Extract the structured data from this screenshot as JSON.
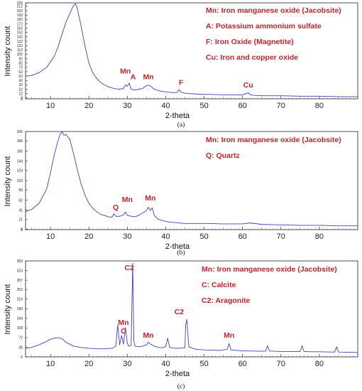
{
  "chart_data": [
    {
      "type": "line",
      "panel_label": "(a)",
      "xlabel": "2-theta",
      "ylabel": "Intensity count",
      "xlim": [
        3.5,
        90
      ],
      "ylim": [
        0,
        220
      ],
      "x_ticks": [
        10,
        20,
        30,
        40,
        50,
        60,
        70,
        80
      ],
      "y_ticks": [
        0,
        2,
        12,
        22,
        32,
        42,
        52,
        62,
        72,
        82,
        92,
        102,
        112,
        122,
        132,
        142,
        152,
        162,
        172,
        182,
        192,
        202,
        212,
        220
      ],
      "series": [
        {
          "color": "#3b43b8",
          "x": [
            3.5,
            5,
            7,
            9,
            11,
            12,
            13,
            14,
            15,
            15.5,
            16,
            16.5,
            17,
            18,
            19,
            20,
            21,
            22,
            23,
            24,
            25,
            26,
            27,
            28,
            29,
            29.5,
            30,
            30.5,
            31,
            32,
            33,
            34,
            35,
            35.5,
            36,
            37,
            38,
            39,
            40,
            41,
            42,
            43,
            43.5,
            44,
            45,
            46,
            48,
            50,
            52,
            55,
            58,
            60,
            61.5,
            62,
            63,
            65,
            70,
            75,
            80,
            85,
            90
          ],
          "y": [
            52,
            53,
            60,
            72,
            98,
            120,
            148,
            175,
            195,
            205,
            214,
            218,
            206,
            165,
            120,
            82,
            60,
            47,
            38,
            32,
            28,
            25,
            23,
            22,
            24,
            32,
            29,
            36,
            22,
            20,
            22,
            24,
            30,
            31,
            30,
            22,
            19,
            17,
            16,
            15,
            14,
            15,
            21,
            15,
            13,
            12,
            11,
            10,
            10,
            9,
            9,
            9,
            14,
            9,
            8,
            7,
            7,
            6,
            6,
            5,
            5
          ]
        }
      ],
      "legend": [
        "Mn: Iron manganese oxide (Jacobsite)",
        "A: Potassium ammonium sulfate",
        "F: Iron Oxide (Magnetite)",
        "Cu: Iron and copper oxide"
      ],
      "legend_position": "top-right",
      "annotations": [
        {
          "text": "Mn",
          "x": 29.5,
          "y": 58
        },
        {
          "text": "A",
          "x": 31.5,
          "y": 45
        },
        {
          "text": "Mn",
          "x": 35.5,
          "y": 45
        },
        {
          "text": "F",
          "x": 44,
          "y": 32
        },
        {
          "text": "Cu",
          "x": 61.5,
          "y": 26
        }
      ]
    },
    {
      "type": "line",
      "panel_label": "(b)",
      "xlabel": "2-theta",
      "ylabel": "Intensity count",
      "xlim": [
        3.5,
        90
      ],
      "ylim": [
        0,
        206
      ],
      "x_ticks": [
        10,
        20,
        30,
        40,
        50,
        60,
        70,
        80
      ],
      "y_ticks": [
        0,
        1,
        21,
        41,
        62,
        83,
        103,
        124,
        144,
        165,
        186,
        206
      ],
      "series": [
        {
          "color": "#3b43b8",
          "x": [
            3.5,
            5,
            7,
            9,
            10,
            11,
            12,
            12.5,
            13,
            13.5,
            14,
            15,
            16,
            17,
            18,
            19,
            20,
            21,
            22,
            23,
            24,
            25,
            26,
            26.5,
            27,
            28,
            29,
            29.5,
            30,
            31,
            32,
            33,
            34,
            35,
            35.5,
            36,
            36.5,
            37,
            38,
            40,
            42,
            45,
            50,
            55,
            60,
            62,
            65,
            70,
            75,
            80,
            85,
            90
          ],
          "y": [
            38,
            42,
            55,
            85,
            120,
            158,
            188,
            200,
            206,
            198,
            200,
            190,
            160,
            125,
            95,
            72,
            55,
            45,
            38,
            32,
            30,
            27,
            26,
            33,
            28,
            28,
            31,
            37,
            30,
            28,
            27,
            30,
            35,
            40,
            47,
            40,
            46,
            30,
            22,
            17,
            15,
            13,
            13,
            12,
            12,
            14,
            11,
            10,
            9,
            9,
            8,
            8
          ]
        }
      ],
      "legend": [
        "Mn: Iron manganese oxide (Jacobsite)",
        "Q: Quartz"
      ],
      "legend_position": "top-right",
      "annotations": [
        {
          "text": "Q",
          "x": 27,
          "y": 42
        },
        {
          "text": "Mn",
          "x": 30,
          "y": 58
        },
        {
          "text": "Mn",
          "x": 36,
          "y": 61
        }
      ]
    },
    {
      "type": "line",
      "panel_label": "(c)",
      "xlabel": "2-theta",
      "ylabel": "Intensity count",
      "xlim": [
        3.5,
        90
      ],
      "ylim": [
        0,
        359
      ],
      "x_ticks": [
        10,
        20,
        30,
        40,
        50,
        60,
        70,
        80
      ],
      "y_ticks": [
        0,
        36,
        72,
        108,
        144,
        180,
        216,
        252,
        287,
        323,
        359
      ],
      "series": [
        {
          "color": "#3b43b8",
          "x": [
            3.5,
            5,
            7,
            9,
            10,
            11,
            12,
            13,
            14,
            16,
            18,
            20,
            22,
            24,
            26,
            27,
            27.5,
            28,
            28.5,
            29,
            29.5,
            30,
            30.5,
            31,
            31.4,
            31.7,
            32,
            33,
            34,
            35,
            35.5,
            36,
            37,
            38,
            39,
            40,
            40.5,
            41,
            42,
            43,
            44,
            45,
            45.2,
            45.5,
            46,
            47,
            48,
            50,
            52,
            54,
            56,
            56.5,
            57,
            60,
            62,
            65,
            66,
            66.5,
            67,
            70,
            73,
            75,
            75.5,
            76,
            78,
            80,
            83,
            84,
            84.5,
            85,
            88,
            90
          ],
          "y": [
            32,
            35,
            45,
            58,
            66,
            70,
            72,
            68,
            55,
            40,
            35,
            32,
            30,
            30,
            32,
            40,
            120,
            45,
            80,
            48,
            110,
            50,
            40,
            45,
            350,
            60,
            40,
            38,
            40,
            45,
            55,
            48,
            40,
            36,
            34,
            38,
            70,
            36,
            33,
            32,
            33,
            34,
            120,
            140,
            38,
            32,
            28,
            26,
            25,
            24,
            28,
            50,
            26,
            22,
            22,
            21,
            21,
            42,
            22,
            20,
            20,
            20,
            42,
            20,
            19,
            19,
            18,
            18,
            38,
            18,
            17,
            16
          ]
        }
      ],
      "legend": [
        "Mn: Iron manganese oxide (Jacobsite)",
        "C: Calcite",
        "C2: Aragonite"
      ],
      "legend_position": "top-right",
      "annotations": [
        {
          "text": "C2",
          "x": 30.5,
          "y": 325
        },
        {
          "text": "Mn",
          "x": 29,
          "y": 120
        },
        {
          "text": "C",
          "x": 29,
          "y": 88
        },
        {
          "text": "Mn",
          "x": 35.5,
          "y": 72
        },
        {
          "text": "C2",
          "x": 43.5,
          "y": 160
        },
        {
          "text": "Mn",
          "x": 56.5,
          "y": 72
        }
      ]
    }
  ]
}
